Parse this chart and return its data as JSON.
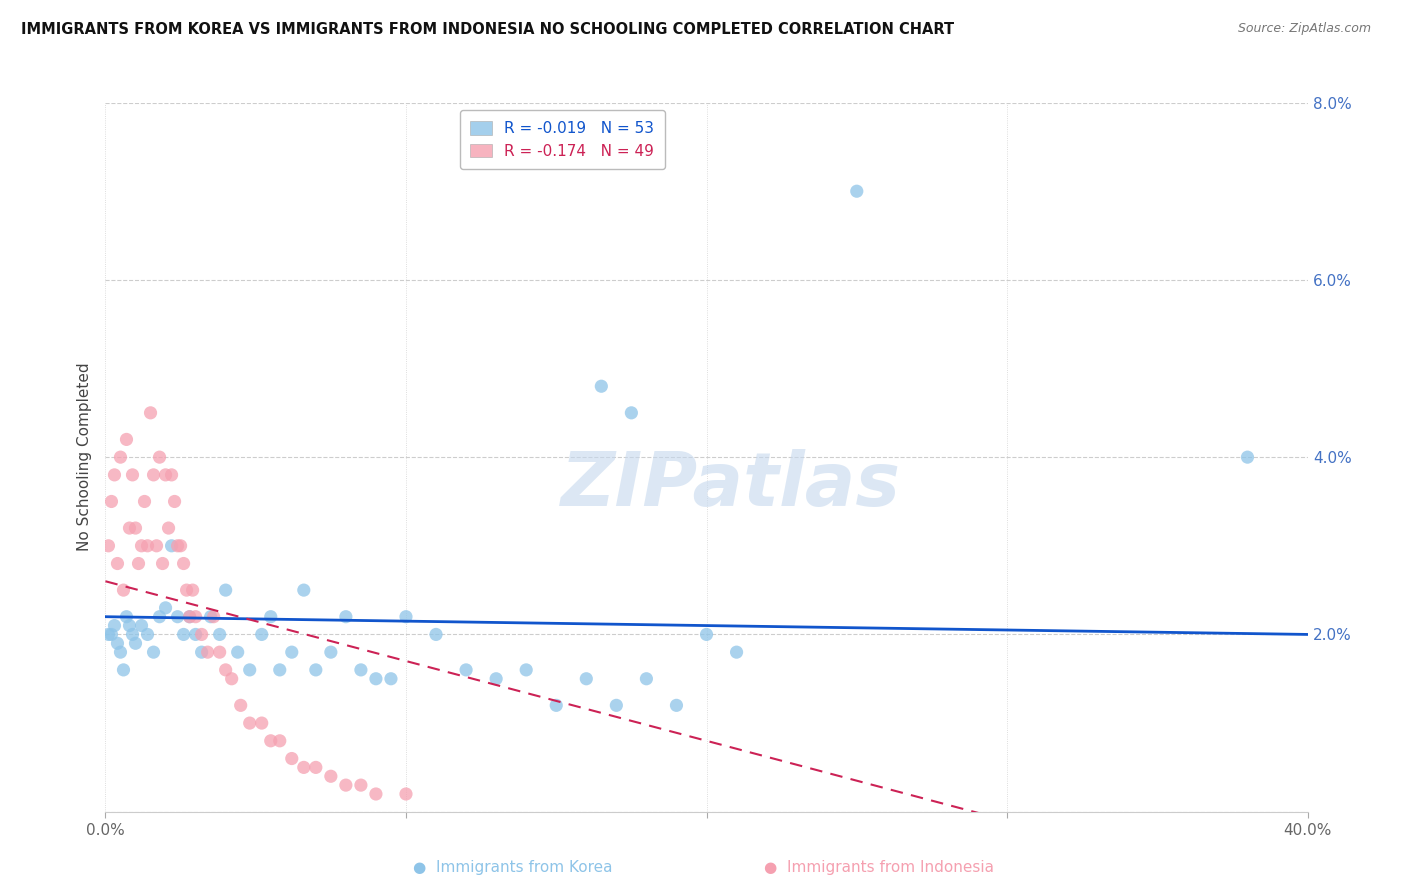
{
  "title": "IMMIGRANTS FROM KOREA VS IMMIGRANTS FROM INDONESIA NO SCHOOLING COMPLETED CORRELATION CHART",
  "source": "Source: ZipAtlas.com",
  "ylabel": "No Schooling Completed",
  "xlim": [
    0.0,
    0.42
  ],
  "ylim": [
    -0.005,
    0.086
  ],
  "plot_xlim": [
    0.0,
    0.4
  ],
  "plot_ylim": [
    0.0,
    0.08
  ],
  "xticks": [
    0.0,
    0.1,
    0.2,
    0.3,
    0.4
  ],
  "yticks": [
    0.0,
    0.02,
    0.04,
    0.06,
    0.08
  ],
  "xticklabels": [
    "0.0%",
    "",
    "",
    "",
    "40.0%"
  ],
  "yticklabels_right": [
    "",
    "2.0%",
    "4.0%",
    "6.0%",
    "8.0%"
  ],
  "korea_R": -0.019,
  "korea_N": 53,
  "indonesia_R": -0.174,
  "indonesia_N": 49,
  "korea_color": "#8ec4e8",
  "indonesia_color": "#f5a0b0",
  "korea_line_color": "#1155cc",
  "indonesia_line_color": "#cc2255",
  "background_color": "#ffffff",
  "grid_color": "#c8c8c8",
  "watermark": "ZIPatlas",
  "legend_korea": "Immigrants from Korea",
  "legend_indonesia": "Immigrants from Indonesia",
  "korea_x": [
    0.001,
    0.002,
    0.003,
    0.004,
    0.005,
    0.006,
    0.007,
    0.008,
    0.009,
    0.01,
    0.012,
    0.014,
    0.016,
    0.018,
    0.02,
    0.022,
    0.024,
    0.026,
    0.028,
    0.03,
    0.032,
    0.035,
    0.038,
    0.04,
    0.044,
    0.048,
    0.052,
    0.055,
    0.058,
    0.062,
    0.066,
    0.07,
    0.075,
    0.08,
    0.085,
    0.09,
    0.095,
    0.1,
    0.11,
    0.12,
    0.13,
    0.14,
    0.15,
    0.16,
    0.165,
    0.17,
    0.175,
    0.18,
    0.19,
    0.2,
    0.21,
    0.25,
    0.38
  ],
  "korea_y": [
    0.02,
    0.02,
    0.021,
    0.019,
    0.018,
    0.016,
    0.022,
    0.021,
    0.02,
    0.019,
    0.021,
    0.02,
    0.018,
    0.022,
    0.023,
    0.03,
    0.022,
    0.02,
    0.022,
    0.02,
    0.018,
    0.022,
    0.02,
    0.025,
    0.018,
    0.016,
    0.02,
    0.022,
    0.016,
    0.018,
    0.025,
    0.016,
    0.018,
    0.022,
    0.016,
    0.015,
    0.015,
    0.022,
    0.02,
    0.016,
    0.015,
    0.016,
    0.012,
    0.015,
    0.048,
    0.012,
    0.045,
    0.015,
    0.012,
    0.02,
    0.018,
    0.07,
    0.04
  ],
  "indonesia_x": [
    0.001,
    0.002,
    0.003,
    0.004,
    0.005,
    0.006,
    0.007,
    0.008,
    0.009,
    0.01,
    0.011,
    0.012,
    0.013,
    0.014,
    0.015,
    0.016,
    0.017,
    0.018,
    0.019,
    0.02,
    0.021,
    0.022,
    0.023,
    0.024,
    0.025,
    0.026,
    0.027,
    0.028,
    0.029,
    0.03,
    0.032,
    0.034,
    0.036,
    0.038,
    0.04,
    0.042,
    0.045,
    0.048,
    0.052,
    0.055,
    0.058,
    0.062,
    0.066,
    0.07,
    0.075,
    0.08,
    0.085,
    0.09,
    0.1
  ],
  "indonesia_y": [
    0.03,
    0.035,
    0.038,
    0.028,
    0.04,
    0.025,
    0.042,
    0.032,
    0.038,
    0.032,
    0.028,
    0.03,
    0.035,
    0.03,
    0.045,
    0.038,
    0.03,
    0.04,
    0.028,
    0.038,
    0.032,
    0.038,
    0.035,
    0.03,
    0.03,
    0.028,
    0.025,
    0.022,
    0.025,
    0.022,
    0.02,
    0.018,
    0.022,
    0.018,
    0.016,
    0.015,
    0.012,
    0.01,
    0.01,
    0.008,
    0.008,
    0.006,
    0.005,
    0.005,
    0.004,
    0.003,
    0.003,
    0.002,
    0.002
  ]
}
